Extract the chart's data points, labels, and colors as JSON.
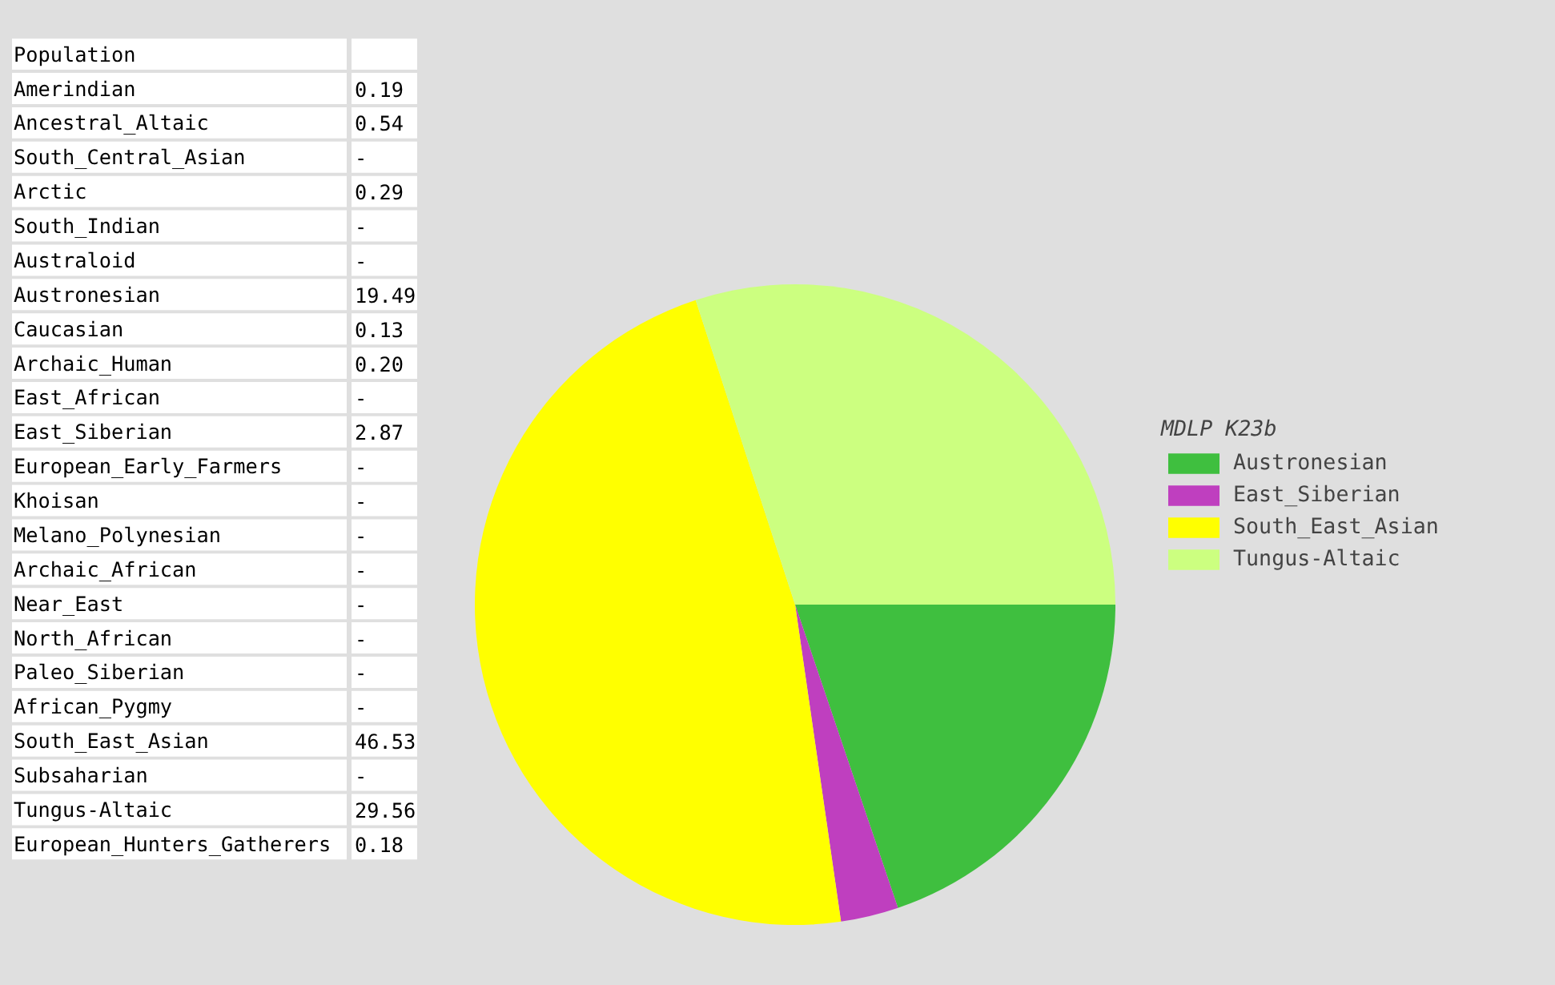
{
  "chart_data": [
    {
      "type": "other",
      "title": "Population",
      "categories": [
        "Amerindian",
        "Ancestral_Altaic",
        "South_Central_Asian",
        "Arctic",
        "South_Indian",
        "Australoid",
        "Austronesian",
        "Caucasian",
        "Archaic_Human",
        "East_African",
        "East_Siberian",
        "European_Early_Farmers",
        "Khoisan",
        "Melano_Polynesian",
        "Archaic_African",
        "Near_East",
        "North_African",
        "Paleo_Siberian",
        "African_Pygmy",
        "South_East_Asian",
        "Subsaharian",
        "Tungus-Altaic",
        "European_Hunters_Gatherers"
      ],
      "values": [
        0.19,
        0.54,
        null,
        0.29,
        null,
        null,
        19.49,
        0.13,
        0.2,
        null,
        2.87,
        null,
        null,
        null,
        null,
        null,
        null,
        null,
        null,
        46.53,
        null,
        29.56,
        0.18
      ],
      "value_labels": [
        "0.19",
        "0.54",
        "-",
        "0.29",
        "-",
        "-",
        "19.49",
        "0.13",
        "0.20",
        "-",
        "2.87",
        "-",
        "-",
        "-",
        "-",
        "-",
        "-",
        "-",
        "-",
        "46.53",
        "-",
        "29.56",
        "0.18"
      ]
    },
    {
      "type": "pie",
      "legend_title": "MDLP K23b",
      "legend": "right",
      "categories": [
        "Austronesian",
        "East_Siberian",
        "South_East_Asian",
        "Tungus-Altaic"
      ],
      "values": [
        19.49,
        2.87,
        46.53,
        29.56
      ],
      "colors": [
        "#3fbf3f",
        "#bf3fbf",
        "#ffff00",
        "#ccff80"
      ]
    }
  ]
}
